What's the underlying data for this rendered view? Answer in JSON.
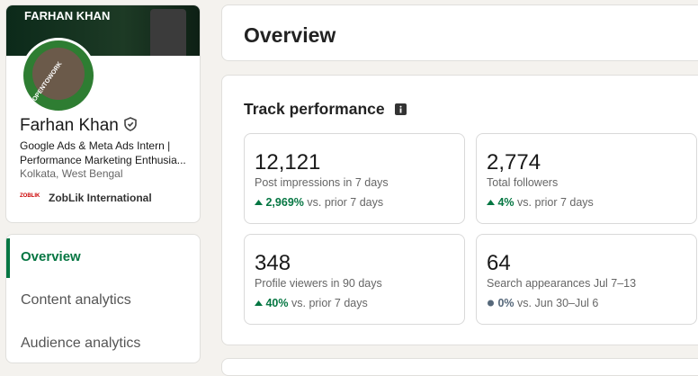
{
  "profile": {
    "banner_title": "FARHAN KHAN",
    "badge": "#OPENTOWORK",
    "name": "Farhan Khan",
    "headline": "Google Ads & Meta Ads Intern | Performance Marketing Enthusia...",
    "location": "Kolkata, West Bengal",
    "company_logo": "ZOBLIK",
    "company": "ZobLik International"
  },
  "nav": [
    "Overview",
    "Content analytics",
    "Audience analytics"
  ],
  "overview": {
    "title": "Overview"
  },
  "track": {
    "title": "Track performance",
    "metrics": [
      {
        "value": "12,121",
        "label": "Post impressions in 7 days",
        "change": "2,969%",
        "comparison": "vs. prior 7 days"
      },
      {
        "value": "2,774",
        "label": "Total followers",
        "change": "4%",
        "comparison": "vs. prior 7 days"
      },
      {
        "value": "348",
        "label": "Profile viewers in 90 days",
        "change": "40%",
        "comparison": "vs. prior 7 days"
      },
      {
        "value": "64",
        "label": "Search appearances Jul 7–13",
        "change": "0%",
        "comparison": "vs. Jun 30–Jul 6"
      }
    ]
  }
}
